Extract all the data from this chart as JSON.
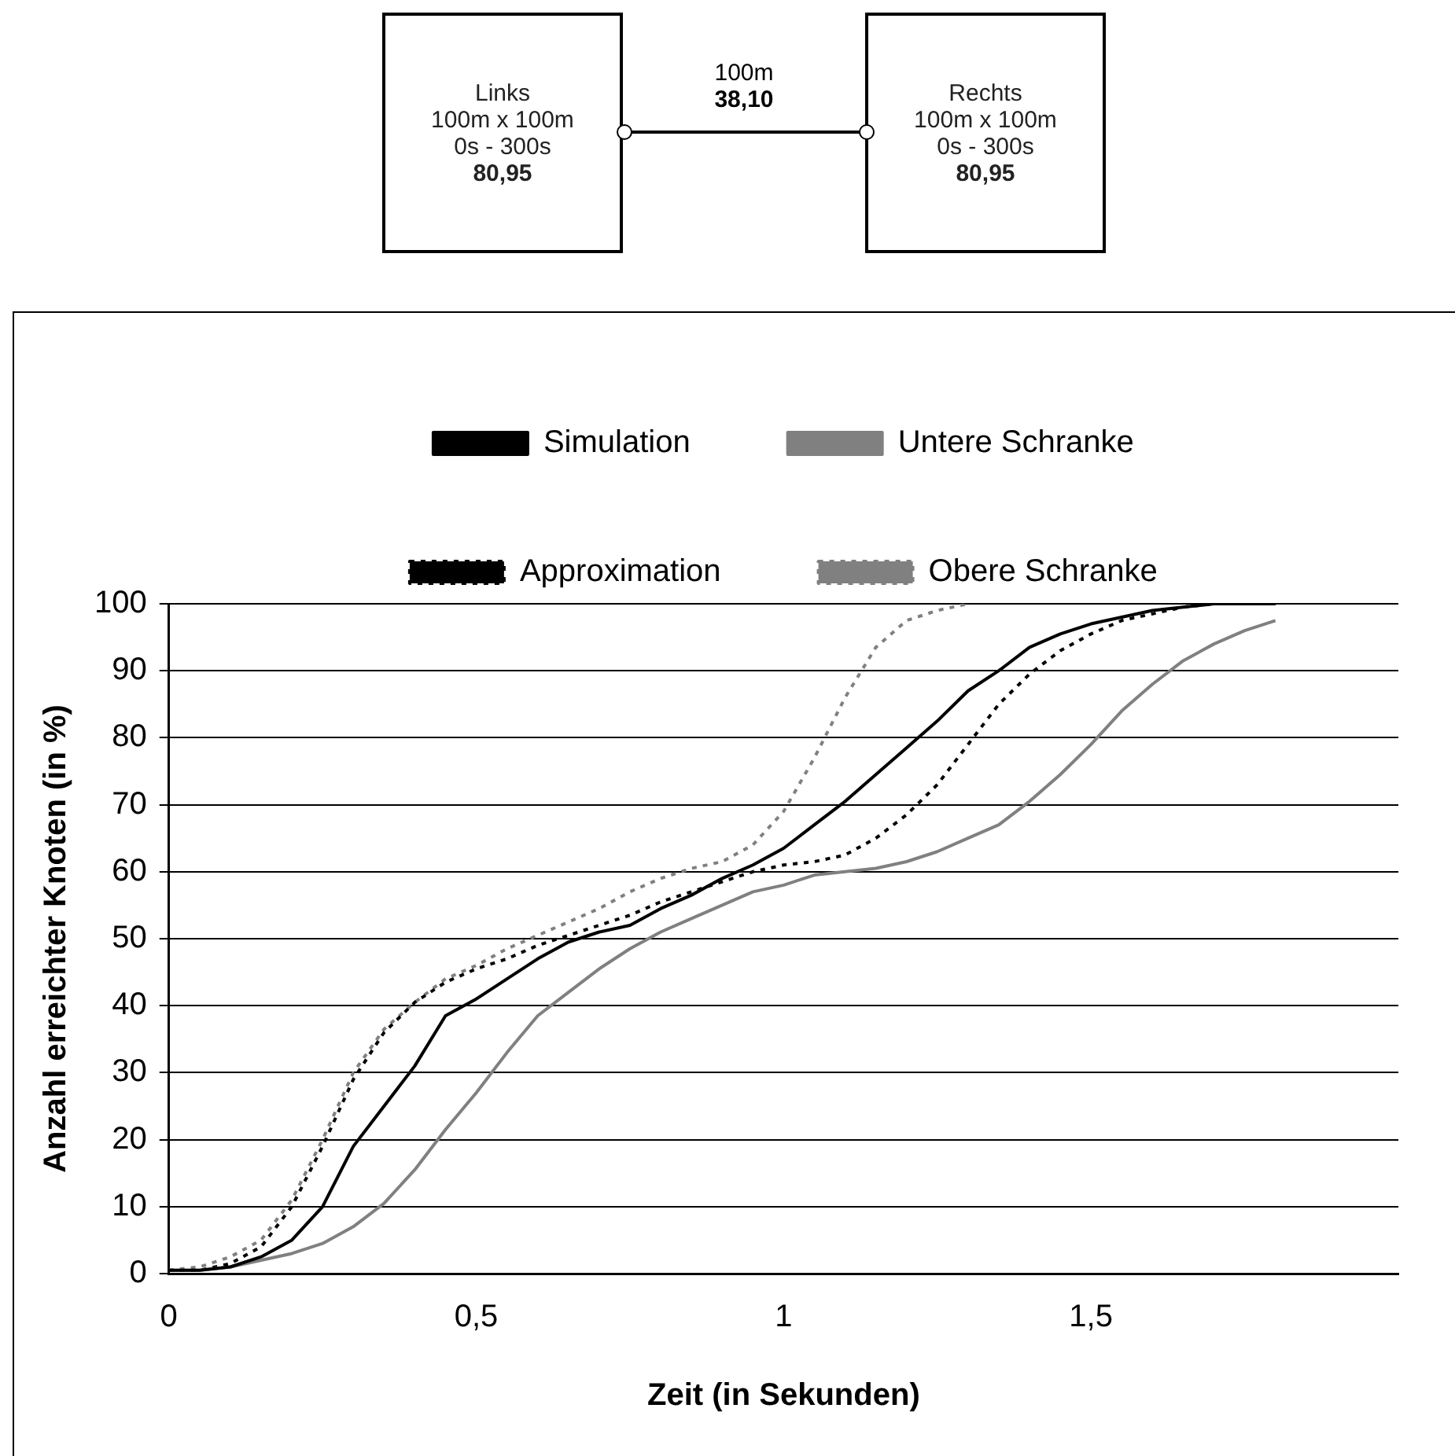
{
  "chart_data": {
    "type": "line",
    "xlabel": "Zeit (in Sekunden)",
    "ylabel": "Anzahl erreichter Knoten (in %)",
    "annotations": [
      "Links",
      "100m x 100m",
      "0s - 300s",
      "80,95",
      "100m",
      "38,10",
      "Rechts",
      "100m x 100m",
      "0s - 300s",
      "80,95"
    ],
    "x": [
      0,
      0.05,
      0.1,
      0.15,
      0.2,
      0.25,
      0.3,
      0.35,
      0.4,
      0.45,
      0.5,
      0.55,
      0.6,
      0.65,
      0.7,
      0.75,
      0.8,
      0.85,
      0.9,
      0.95,
      1,
      1.05,
      1.1,
      1.15,
      1.2,
      1.25,
      1.3,
      1.35,
      1.4,
      1.45,
      1.5,
      1.55,
      1.6,
      1.65,
      1.7,
      1.75,
      1.8
    ],
    "series": [
      {
        "name": "Simulation",
        "color": "#000000",
        "line_style": "solid",
        "values": [
          0.5,
          0.5,
          1,
          2.5,
          5,
          10,
          19,
          25,
          31,
          38.5,
          41,
          44,
          47,
          49.5,
          51,
          52,
          54.5,
          56.5,
          59,
          61,
          63.5,
          67,
          70.5,
          74.5,
          78.5,
          82.5,
          87,
          90,
          93.5,
          95.5,
          97,
          98,
          99,
          99.5,
          100,
          100,
          100
        ]
      },
      {
        "name": "Untere Schranke",
        "color": "#808080",
        "line_style": "solid",
        "values": [
          0.5,
          0.5,
          1,
          2,
          3,
          4.5,
          7,
          10.5,
          15.5,
          21.5,
          27,
          33,
          38.5,
          42,
          45.5,
          48.5,
          51,
          53,
          55,
          57,
          58,
          59.5,
          60,
          60.5,
          61.5,
          63,
          65,
          67,
          70.5,
          74.5,
          79,
          84,
          88,
          91.5,
          94,
          96,
          97.5
        ]
      },
      {
        "name": "Approximation",
        "color": "#000000",
        "line_style": "dotted",
        "values": [
          0.5,
          0.5,
          1.5,
          4,
          10,
          19,
          29,
          36,
          40.5,
          43.5,
          45.5,
          47,
          49,
          50.5,
          52,
          53.5,
          55.5,
          57,
          58.5,
          60,
          61,
          61.5,
          62.5,
          65,
          68.5,
          73,
          79,
          85,
          89.5,
          93,
          95.5,
          97.5,
          98.5,
          99.5,
          100,
          100,
          100
        ]
      },
      {
        "name": "Obere Schranke",
        "color": "#808080",
        "line_style": "dotted",
        "x": [
          0,
          0.05,
          0.1,
          0.15,
          0.2,
          0.25,
          0.3,
          0.35,
          0.4,
          0.45,
          0.5,
          0.55,
          0.6,
          0.65,
          0.7,
          0.75,
          0.8,
          0.85,
          0.9,
          0.95,
          1,
          1.05,
          1.1,
          1.15,
          1.2,
          1.25,
          1.3
        ],
        "values": [
          0.5,
          1,
          2.5,
          5,
          11,
          20,
          30,
          36.5,
          40.5,
          44,
          46,
          48.5,
          50.5,
          52.5,
          54.5,
          57,
          59,
          60.5,
          61.5,
          64,
          69,
          77,
          86,
          93.5,
          97.5,
          99,
          100
        ]
      }
    ],
    "xlim": [
      0,
      2
    ],
    "xticks": [
      0,
      {
        "value": 0.5,
        "label": "0,5"
      },
      1,
      {
        "value": 1.5,
        "label": "1,5"
      }
    ],
    "ylim": [
      0,
      100
    ],
    "yticks": [
      0,
      10,
      20,
      30,
      40,
      50,
      60,
      70,
      80,
      90,
      100
    ],
    "grid": "y",
    "legend": "top",
    "marker": "none"
  }
}
